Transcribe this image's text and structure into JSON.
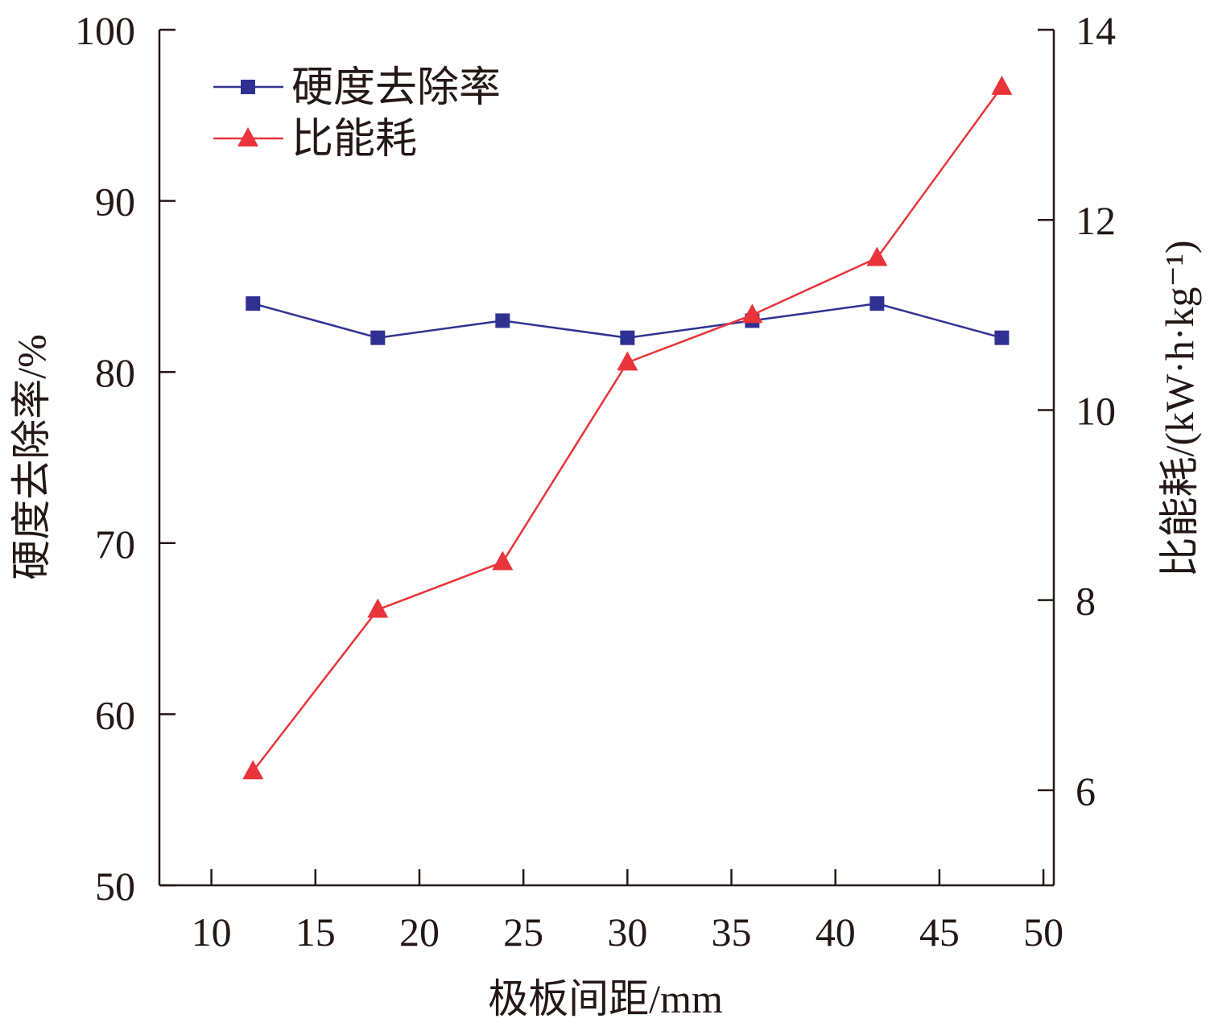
{
  "chart_data": {
    "type": "line",
    "x": [
      12,
      18,
      24,
      30,
      36,
      42,
      48
    ],
    "xlabel": "极板间距/mm",
    "xlim": [
      7.5,
      50.5
    ],
    "xticks": [
      10,
      15,
      20,
      25,
      30,
      35,
      40,
      45,
      50
    ],
    "ylabel_left": "硬度去除率/%",
    "ylim_left": [
      50,
      100
    ],
    "yticks_left": [
      50,
      60,
      70,
      80,
      90,
      100
    ],
    "ylabel_right": "比能耗/(kW·h·kg⁻¹)",
    "ylim_right": [
      5,
      14
    ],
    "yticks_right": [
      6,
      8,
      10,
      12,
      14
    ],
    "legend_position": "top-left",
    "grid": false,
    "series": [
      {
        "name": "硬度去除率",
        "axis": "left",
        "marker": "square",
        "color": "#2e3192",
        "values": [
          84,
          82,
          83,
          82,
          83,
          84,
          82
        ]
      },
      {
        "name": "比能耗",
        "axis": "right",
        "marker": "triangle",
        "color": "#e8343a",
        "values": [
          6.2,
          7.9,
          8.4,
          10.5,
          11.0,
          11.6,
          13.4
        ]
      }
    ]
  }
}
